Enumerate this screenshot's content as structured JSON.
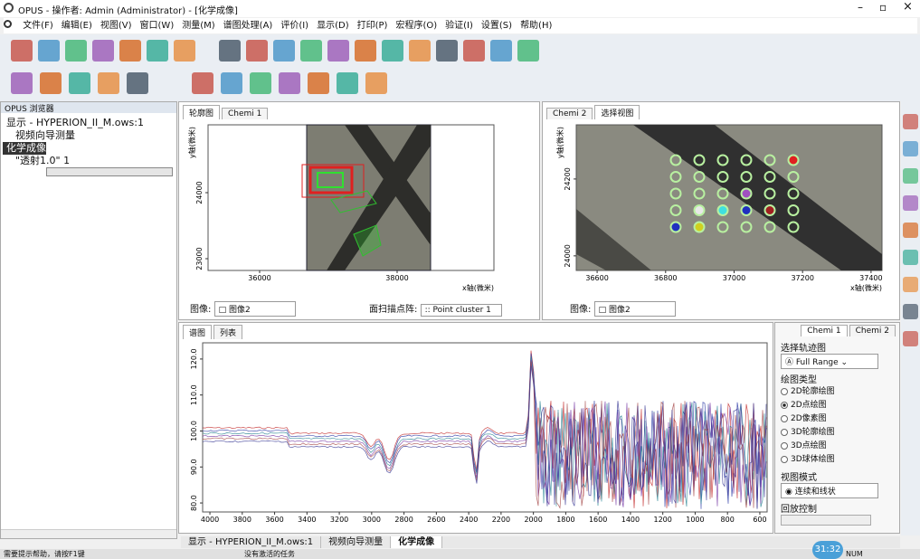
{
  "window": {
    "title": "OPUS - 操作者: Admin (Administrator) - [化学成像]"
  },
  "menu": [
    "文件(F)",
    "编辑(E)",
    "视图(V)",
    "窗口(W)",
    "测量(M)",
    "谱图处理(A)",
    "评价(I)",
    "显示(D)",
    "打印(P)",
    "宏程序(O)",
    "验证(I)",
    "设置(S)",
    "帮助(H)"
  ],
  "browser": {
    "title": "OPUS 浏览器",
    "tree": [
      "显示 - HYPERION_II_M.ows:1",
      "视频向导测量",
      "化学成像",
      "\"透射1.0\" 1"
    ]
  },
  "contour_view": {
    "tabs": [
      "轮廓图",
      "Chemi 1"
    ],
    "y_label": "y轴(微米)",
    "x_label": "x轴(微米)",
    "xlim": [
      35250,
      39408
    ],
    "ylim": [
      22822,
      25027
    ],
    "xticks": [
      36000,
      38000
    ],
    "yticks": [
      23000,
      24000
    ],
    "image_label": "图像:",
    "image_value": "图像2",
    "grid_label": "面扫描点阵:",
    "grid_value": "Point cluster 1"
  },
  "select_view": {
    "tabs": [
      "Chemi 2",
      "选择视图"
    ],
    "y_label": "y轴(微米)",
    "x_label": "x轴(微米)",
    "xlim": [
      36539,
      37432
    ],
    "ylim": [
      23962,
      24341
    ],
    "xticks": [
      36600,
      36800,
      37000,
      37200,
      37400
    ],
    "yticks": [
      24000,
      24200
    ],
    "image_label": "图像:",
    "image_value": "图像2"
  },
  "spectrum_view": {
    "tabs": [
      "谱图",
      "列表"
    ],
    "xlim": [
      4045,
      555
    ],
    "ylim": [
      77.5,
      124.5
    ],
    "xticks": [
      4000,
      3800,
      3600,
      3400,
      3200,
      3000,
      2800,
      2600,
      2400,
      2200,
      2000,
      1800,
      1600,
      1400,
      1200,
      1000,
      800,
      600
    ],
    "yticks": [
      {
        "value": 80,
        "label": "80.0"
      },
      {
        "value": 90,
        "label": "90.0"
      },
      {
        "value": 100,
        "label": "100.0"
      },
      {
        "value": 110,
        "label": "110.0"
      },
      {
        "value": 120,
        "label": "120.0"
      }
    ]
  },
  "settings_panel": {
    "tabs": [
      "Chemi 1",
      "Chemi 2"
    ],
    "trace_label": "选择轨迹图",
    "trace_value": "Full Range",
    "plot_type_label": "绘图类型",
    "plot_types": [
      "2D轮廓绘图",
      "2D点绘图",
      "2D像素图",
      "3D轮廓绘图",
      "3D点绘图",
      "3D球体绘图"
    ],
    "view_mode_label": "视图模式",
    "view_mode_value": "连续和线状",
    "playback_label": "回放控制"
  },
  "doc_tabs": [
    "显示 - HYPERION_II_M.ows:1",
    "视频向导测量",
    "化学成像"
  ],
  "status": [
    "需要提示帮助，请按F1键",
    "没有激活的任务",
    "NUM"
  ],
  "clock": "31:32"
}
